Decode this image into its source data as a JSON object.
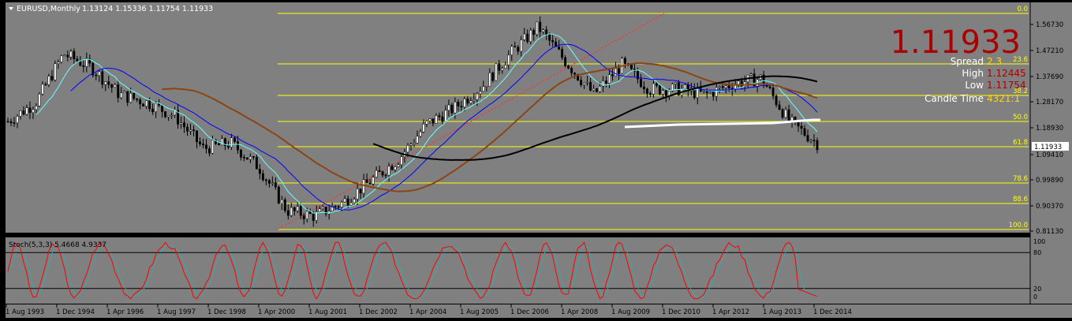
{
  "chart_header": {
    "symbol_label": "EURUSD,Monthly",
    "ohlc": "1.13124 1.15336 1.11754 1.11933"
  },
  "info_panel": {
    "big_price": "1.11933",
    "spread_label": "Spread",
    "spread_value": "2.3",
    "high_label": "High",
    "high_value": "1.12445",
    "low_label": "Low",
    "low_value": "1.11754",
    "candle_time_label": "Candle Time",
    "candle_time_value": "4321:1"
  },
  "price_axis": {
    "labels": [
      "1.56730",
      "1.47210",
      "1.37690",
      "1.28170",
      "1.18930",
      "1.09410",
      "0.99890",
      "0.90370",
      "0.81130"
    ],
    "current_price_tag": "1.11933"
  },
  "fib_levels": [
    "0.0",
    "23.6",
    "38.2",
    "50.0",
    "61.8",
    "78.6",
    "88.6",
    "100.0"
  ],
  "stoch_panel": {
    "label": "Stoch(5,3,3) 5.4668 4.9337",
    "axis_labels": [
      "100",
      "80",
      "20",
      "0"
    ]
  },
  "time_axis": {
    "labels": [
      "1 Aug 1993",
      "1 Dec 1994",
      "1 Apr 1996",
      "1 Aug 1997",
      "1 Dec 1998",
      "1 Apr 2000",
      "1 Aug 2001",
      "1 Dec 2002",
      "1 Apr 2004",
      "1 Aug 2005",
      "1 Dec 2006",
      "1 Apr 2008",
      "1 Aug 2009",
      "1 Dec 2010",
      "1 Apr 2012",
      "1 Aug 2013",
      "1 Dec 2014"
    ]
  },
  "colors": {
    "chart_bg": "#808080",
    "candle": "#000000",
    "fib": "#ffff00",
    "ma_cyan": "#66ffff",
    "ma_blue": "#0000ff",
    "ma_brown": "#8b4513",
    "ma_black": "#000000",
    "support": "#ffffff",
    "big_price": "#aa0000",
    "stoch_main": "#ff0000",
    "stoch_signal": "#00c8c8"
  },
  "chart_data": {
    "type": "candlestick",
    "series": [
      {
        "name": "EURUSD,Monthly",
        "close": [
          1.2,
          1.27,
          1.45,
          1.4,
          1.3,
          1.27,
          1.22,
          1.1,
          1.12,
          1.03,
          0.87,
          0.85,
          0.9,
          0.98,
          1.06,
          1.19,
          1.25,
          1.33,
          1.45,
          1.55,
          1.42,
          1.3,
          1.41,
          1.32,
          1.32,
          1.3,
          1.34,
          1.36,
          1.2,
          1.12
        ]
      }
    ],
    "ylim": [
      0.8,
      1.6
    ],
    "stochastic_values": [
      {
        "name": "Stoch main",
        "value": 5.4668
      },
      {
        "name": "Stoch signal",
        "value": 4.9337
      }
    ]
  }
}
